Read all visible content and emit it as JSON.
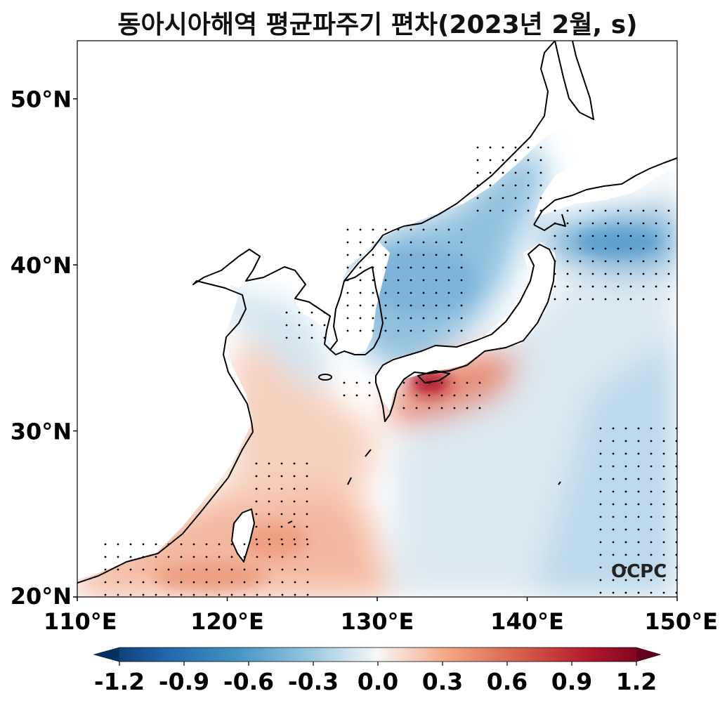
{
  "title": "동아시아해역 평균파주기 편차(2023년 2월, s)",
  "logo": "OCPC",
  "map": {
    "extent": {
      "lon": [
        110,
        150
      ],
      "lat": [
        20,
        53.5
      ]
    },
    "x_ticks": [
      {
        "value": 110,
        "label": "110°E"
      },
      {
        "value": 120,
        "label": "120°E"
      },
      {
        "value": 130,
        "label": "130°E"
      },
      {
        "value": 140,
        "label": "140°E"
      },
      {
        "value": 150,
        "label": "150°E"
      }
    ],
    "y_ticks": [
      {
        "value": 20,
        "label": "20°N"
      },
      {
        "value": 30,
        "label": "30°N"
      },
      {
        "value": 40,
        "label": "40°N"
      },
      {
        "value": 50,
        "label": "50°N"
      }
    ]
  },
  "colorbar": {
    "colormap": "RdBu_r",
    "range": [
      -1.2,
      1.2
    ],
    "ticks": [
      "-1.2",
      "-0.9",
      "-0.6",
      "-0.3",
      "0.0",
      "0.3",
      "0.6",
      "0.9",
      "1.2"
    ],
    "extend": "both"
  },
  "colors": {
    "min": "#053061",
    "blue_mid": "#4393c3",
    "blue_light": "#d1e5f0",
    "zero": "#f7f7f7",
    "red_light": "#fddbc7",
    "red_mid": "#d6604d",
    "max": "#67001f"
  }
}
